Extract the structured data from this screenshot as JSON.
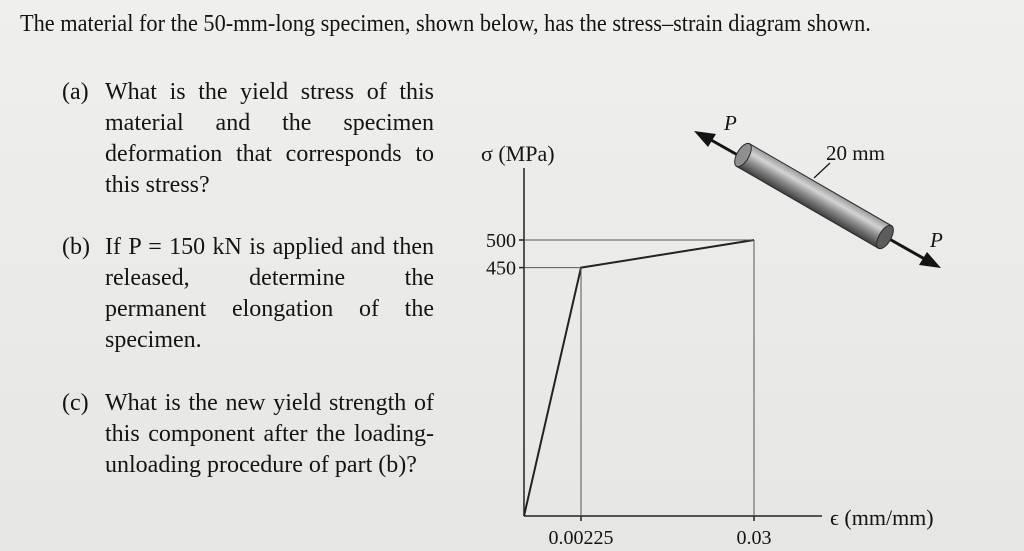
{
  "problem": {
    "intro": "The material for the 50-mm-long specimen, shown below, has the stress–strain diagram shown.",
    "parts": [
      {
        "label": "(a)",
        "text": "What is the yield stress of this material and the specimen deformation that corresponds to this stress?"
      },
      {
        "label": "(b)",
        "text": "If P = 150 kN is applied and then released, determine the permanent elongation of the specimen."
      },
      {
        "label": "(c)",
        "text": "What is the new yield strength of this component after the loading-unloading procedure of part (b)?"
      }
    ]
  },
  "figure": {
    "specimen": {
      "force_label": "P",
      "diameter_label": "20 mm"
    },
    "chart_data": {
      "type": "line",
      "title": "",
      "xlabel": "ϵ (mm/mm)",
      "ylabel": "σ (MPa)",
      "y_ticks": [
        "500",
        "450"
      ],
      "x_ticks": [
        "0.00225",
        "0.03"
      ],
      "series": [
        {
          "x": [
            0,
            0.00225,
            0.03
          ],
          "y": [
            0,
            450,
            500
          ]
        }
      ]
    }
  }
}
